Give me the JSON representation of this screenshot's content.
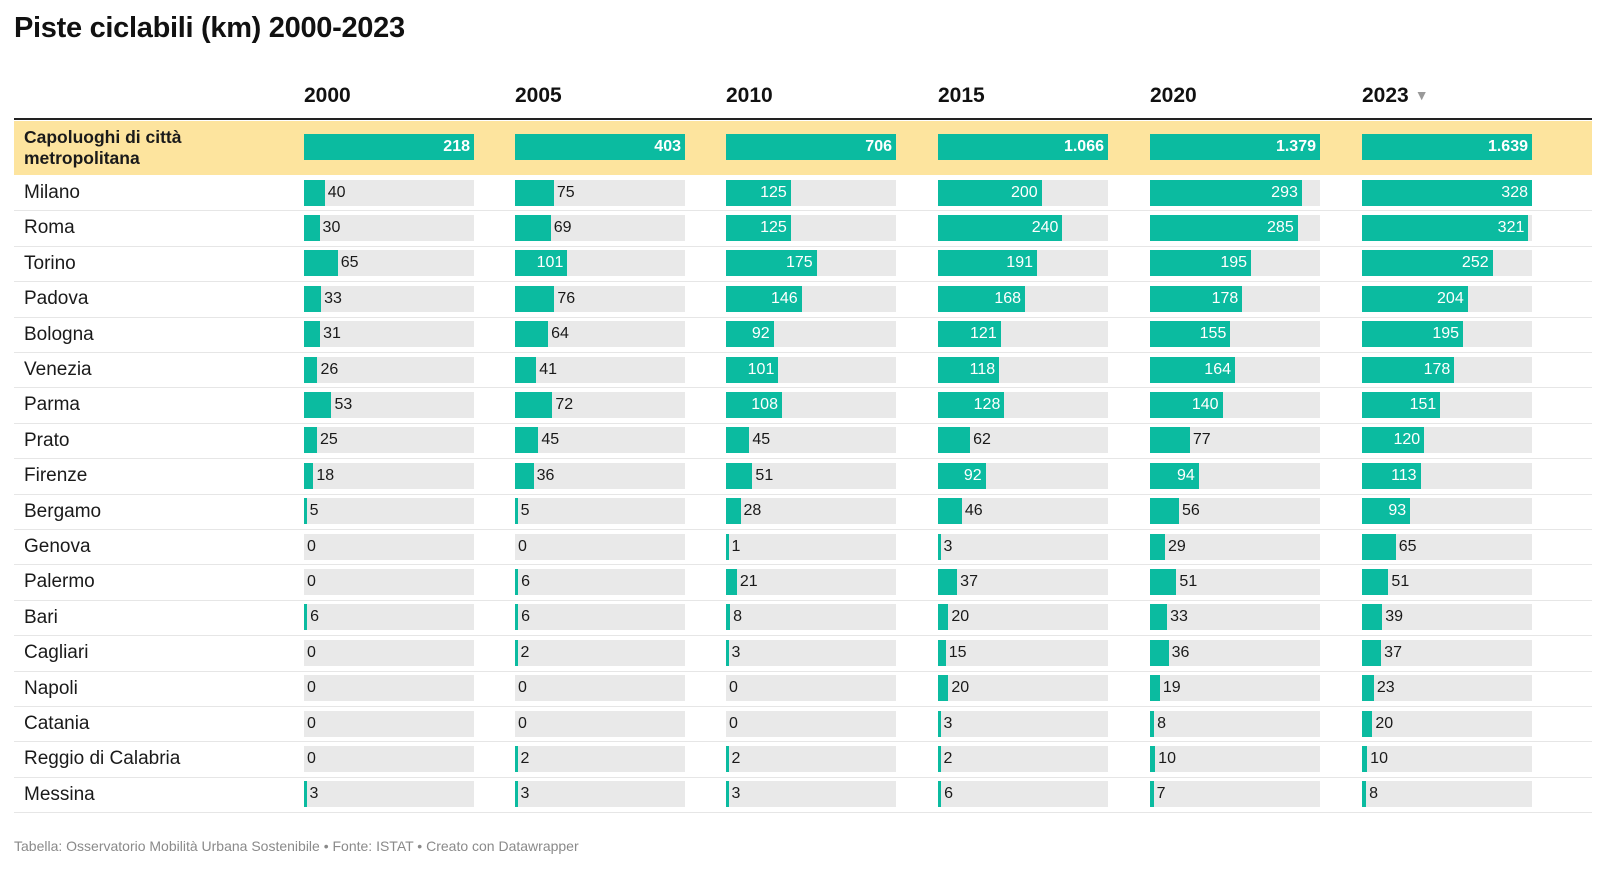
{
  "title": "Piste ciclabili (km) 2000-2023",
  "footer": "Tabella: Osservatorio Mobilità Urbana Sostenibile • Fonte: ISTAT • Creato con Datawrapper",
  "colors": {
    "bar": "#0bbba0",
    "track": "#e9e9e9",
    "highlight_row": "#fde49e"
  },
  "sort_icon": "sort-descending-icon",
  "chart_data": {
    "type": "table",
    "columns": [
      "2000",
      "2005",
      "2010",
      "2015",
      "2020",
      "2023"
    ],
    "sorted_column": "2023",
    "rows": [
      {
        "label": "Capoluoghi di città metropolitana",
        "highlight": true,
        "values": [
          218,
          403,
          706,
          1066,
          1379,
          1639
        ],
        "display": [
          "218",
          "403",
          "706",
          "1.066",
          "1.379",
          "1.639"
        ]
      },
      {
        "label": "Milano",
        "values": [
          40,
          75,
          125,
          200,
          293,
          328
        ],
        "display": [
          "40",
          "75",
          "125",
          "200",
          "293",
          "328"
        ]
      },
      {
        "label": "Roma",
        "values": [
          30,
          69,
          125,
          240,
          285,
          321
        ],
        "display": [
          "30",
          "69",
          "125",
          "240",
          "285",
          "321"
        ]
      },
      {
        "label": "Torino",
        "values": [
          65,
          101,
          175,
          191,
          195,
          252
        ],
        "display": [
          "65",
          "101",
          "175",
          "191",
          "195",
          "252"
        ]
      },
      {
        "label": "Padova",
        "values": [
          33,
          76,
          146,
          168,
          178,
          204
        ],
        "display": [
          "33",
          "76",
          "146",
          "168",
          "178",
          "204"
        ]
      },
      {
        "label": "Bologna",
        "values": [
          31,
          64,
          92,
          121,
          155,
          195
        ],
        "display": [
          "31",
          "64",
          "92",
          "121",
          "155",
          "195"
        ]
      },
      {
        "label": "Venezia",
        "values": [
          26,
          41,
          101,
          118,
          164,
          178
        ],
        "display": [
          "26",
          "41",
          "101",
          "118",
          "164",
          "178"
        ]
      },
      {
        "label": "Parma",
        "values": [
          53,
          72,
          108,
          128,
          140,
          151
        ],
        "display": [
          "53",
          "72",
          "108",
          "128",
          "140",
          "151"
        ]
      },
      {
        "label": "Prato",
        "values": [
          25,
          45,
          45,
          62,
          77,
          120
        ],
        "display": [
          "25",
          "45",
          "45",
          "62",
          "77",
          "120"
        ]
      },
      {
        "label": "Firenze",
        "values": [
          18,
          36,
          51,
          92,
          94,
          113
        ],
        "display": [
          "18",
          "36",
          "51",
          "92",
          "94",
          "113"
        ]
      },
      {
        "label": "Bergamo",
        "values": [
          5,
          5,
          28,
          46,
          56,
          93
        ],
        "display": [
          "5",
          "5",
          "28",
          "46",
          "56",
          "93"
        ]
      },
      {
        "label": "Genova",
        "values": [
          0,
          0,
          1,
          3,
          29,
          65
        ],
        "display": [
          "0",
          "0",
          "1",
          "3",
          "29",
          "65"
        ]
      },
      {
        "label": "Palermo",
        "values": [
          0,
          6,
          21,
          37,
          51,
          51
        ],
        "display": [
          "0",
          "6",
          "21",
          "37",
          "51",
          "51"
        ]
      },
      {
        "label": "Bari",
        "values": [
          6,
          6,
          8,
          20,
          33,
          39
        ],
        "display": [
          "6",
          "6",
          "8",
          "20",
          "33",
          "39"
        ]
      },
      {
        "label": "Cagliari",
        "values": [
          0,
          2,
          3,
          15,
          36,
          37
        ],
        "display": [
          "0",
          "2",
          "3",
          "15",
          "36",
          "37"
        ]
      },
      {
        "label": "Napoli",
        "values": [
          0,
          0,
          0,
          20,
          19,
          23
        ],
        "display": [
          "0",
          "0",
          "0",
          "20",
          "19",
          "23"
        ]
      },
      {
        "label": "Catania",
        "values": [
          0,
          0,
          0,
          3,
          8,
          20
        ],
        "display": [
          "0",
          "0",
          "0",
          "3",
          "8",
          "20"
        ]
      },
      {
        "label": "Reggio di Calabria",
        "values": [
          0,
          2,
          2,
          2,
          10,
          10
        ],
        "display": [
          "0",
          "2",
          "2",
          "2",
          "10",
          "10"
        ]
      },
      {
        "label": "Messina",
        "values": [
          3,
          3,
          3,
          6,
          7,
          8
        ],
        "display": [
          "3",
          "3",
          "3",
          "6",
          "7",
          "8"
        ]
      }
    ]
  }
}
